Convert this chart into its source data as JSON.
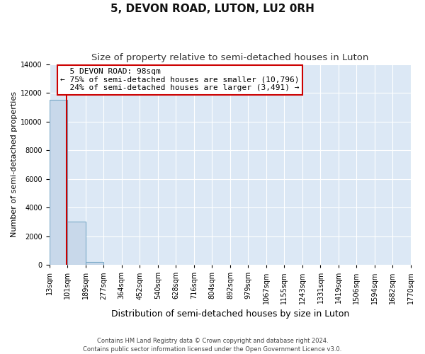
{
  "title": "5, DEVON ROAD, LUTON, LU2 0RH",
  "subtitle": "Size of property relative to semi-detached houses in Luton",
  "xlabel": "Distribution of semi-detached houses by size in Luton",
  "ylabel": "Number of semi-detached properties",
  "footnote": "Contains HM Land Registry data © Crown copyright and database right 2024.\nContains public sector information licensed under the Open Government Licence v3.0.",
  "bar_edges": [
    13,
    101,
    189,
    277,
    364,
    452,
    540,
    628,
    716,
    804,
    892,
    979,
    1067,
    1155,
    1243,
    1331,
    1419,
    1506,
    1594,
    1682,
    1770
  ],
  "bar_heights": [
    11500,
    3000,
    200,
    0,
    0,
    0,
    0,
    0,
    0,
    0,
    0,
    0,
    0,
    0,
    0,
    0,
    0,
    0,
    0,
    0
  ],
  "bar_color": "#c8d8ea",
  "bar_edgecolor": "#7aaac8",
  "property_size": 98,
  "property_label": "5 DEVON ROAD: 98sqm",
  "pct_smaller": 75,
  "pct_larger": 24,
  "n_smaller": 10796,
  "n_larger": 3491,
  "annotation_box_color": "#cc0000",
  "vline_color": "#cc0000",
  "ylim": [
    0,
    14000
  ],
  "yticks": [
    0,
    2000,
    4000,
    6000,
    8000,
    10000,
    12000,
    14000
  ],
  "bg_color": "#dce8f5",
  "grid_color": "#ffffff",
  "fig_bg": "#ffffff",
  "title_fontsize": 11,
  "subtitle_fontsize": 9.5,
  "xlabel_fontsize": 9,
  "ylabel_fontsize": 8,
  "tick_fontsize": 7,
  "footnote_fontsize": 6
}
